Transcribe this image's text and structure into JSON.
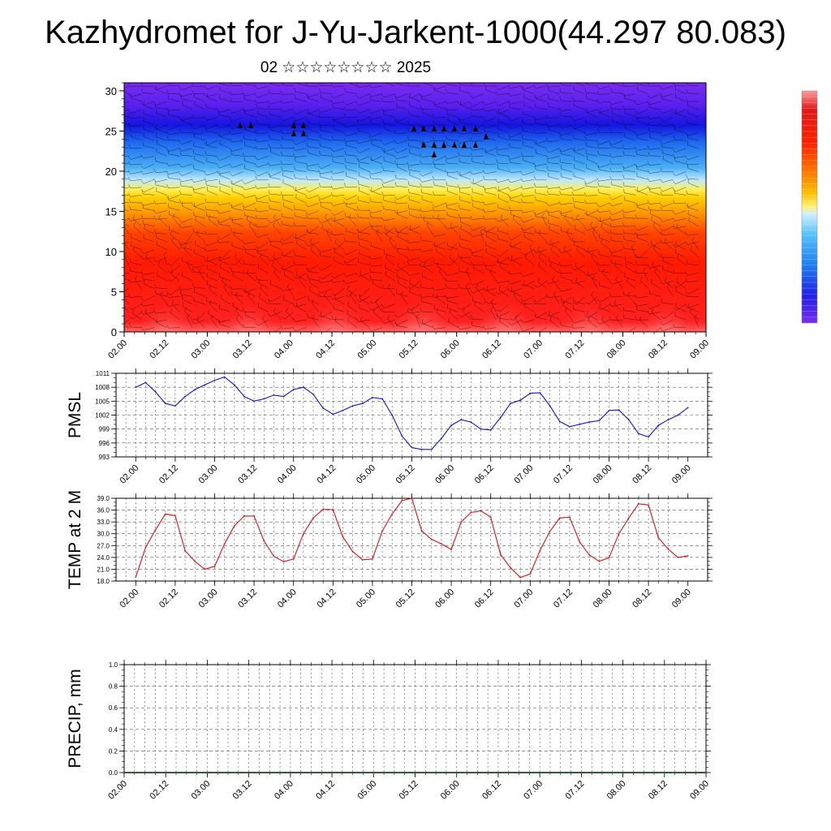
{
  "header": {
    "title": "Kazhydromet for J-Yu-Jarkent-1000(44.297 80.083)",
    "subtitle": "02 ☆☆☆☆☆☆☆☆ 2025"
  },
  "x_tick_labels": [
    "02.00",
    "02.12",
    "03.00",
    "03.12",
    "04.00",
    "04.12",
    "05.00",
    "05.12",
    "06.00",
    "06.12",
    "07.00",
    "07.12",
    "08.00",
    "08.12",
    "09.00"
  ],
  "colors": {
    "pmsl_line": "#1010e0",
    "temp_line": "#e01010",
    "frame": "#000000",
    "grid": "#555555"
  },
  "chart_data": [
    {
      "type": "heatmap",
      "title": "",
      "ylim": [
        0,
        31
      ],
      "y_ticks": [
        "0",
        "5",
        "10",
        "15",
        "20",
        "25",
        "30"
      ],
      "x_range": [
        0,
        7
      ],
      "colorbar": "purple-blue-cyan-yellow-orange-red-pink",
      "overlay": "wind barbs"
    },
    {
      "type": "line",
      "ylabel": "PMSL",
      "ylim": [
        993,
        1011
      ],
      "y_ticks": [
        "993",
        "996",
        "999",
        "1002",
        "1005",
        "1008",
        "1011"
      ],
      "x": [
        0,
        0.125,
        0.25,
        0.375,
        0.5,
        0.625,
        0.75,
        0.875,
        1,
        1.125,
        1.25,
        1.375,
        1.5,
        1.625,
        1.75,
        1.875,
        2,
        2.125,
        2.25,
        2.375,
        2.5,
        2.625,
        2.75,
        2.875,
        3,
        3.125,
        3.25,
        3.375,
        3.5,
        3.625,
        3.75,
        3.875,
        4,
        4.125,
        4.25,
        4.375,
        4.5,
        4.625,
        4.75,
        4.875,
        5,
        5.125,
        5.25,
        5.375,
        5.5,
        5.625,
        5.75,
        5.875,
        6,
        6.125,
        6.25,
        6.375,
        6.5,
        6.625,
        6.75,
        6.875,
        7
      ],
      "values": [
        1008,
        1009,
        1007,
        1004.5,
        1004,
        1006,
        1007.5,
        1008.5,
        1009.5,
        1010.2,
        1008.5,
        1006,
        1005,
        1005.5,
        1006.3,
        1006,
        1007.5,
        1008,
        1006.5,
        1003.5,
        1002.2,
        1003,
        1004,
        1004.5,
        1005.8,
        1005.5,
        1002,
        997.5,
        995,
        994.6,
        994.6,
        997,
        999.8,
        1001,
        1000.5,
        999,
        998.8,
        1001.5,
        1004.5,
        1005.2,
        1006.7,
        1006.8,
        1004,
        1000.6,
        999.5,
        1000,
        1000.5,
        1000.8,
        1003,
        1003.1,
        1001,
        998,
        997.3,
        999.8,
        1001,
        1002,
        1003.6
      ]
    },
    {
      "type": "line",
      "ylabel": "TEMP at 2 M",
      "ylim": [
        18,
        39
      ],
      "y_ticks": [
        "18.0",
        "21.0",
        "24.0",
        "27.0",
        "30.0",
        "33.0",
        "36.0",
        "39.0"
      ],
      "x": [
        0,
        0.125,
        0.25,
        0.375,
        0.5,
        0.625,
        0.75,
        0.875,
        1,
        1.125,
        1.25,
        1.375,
        1.5,
        1.625,
        1.75,
        1.875,
        2,
        2.125,
        2.25,
        2.375,
        2.5,
        2.625,
        2.75,
        2.875,
        3,
        3.125,
        3.25,
        3.375,
        3.5,
        3.625,
        3.75,
        3.875,
        4,
        4.125,
        4.25,
        4.375,
        4.5,
        4.625,
        4.75,
        4.875,
        5,
        5.125,
        5.25,
        5.375,
        5.5,
        5.625,
        5.75,
        5.875,
        6,
        6.125,
        6.25,
        6.375,
        6.5,
        6.625,
        6.75,
        6.875,
        7
      ],
      "values": [
        19,
        26.5,
        31,
        35,
        34.6,
        25.7,
        23,
        21,
        21.7,
        27.4,
        32,
        34.5,
        34.5,
        28.2,
        24.3,
        22.9,
        23.6,
        30,
        34,
        36.2,
        36.1,
        29.2,
        25.5,
        23.4,
        23.6,
        30.7,
        35,
        38.4,
        39,
        30.7,
        28.6,
        27.4,
        26,
        33,
        35.4,
        35.8,
        34.2,
        24.7,
        21.4,
        18.9,
        19.8,
        25.8,
        30.6,
        34,
        34.2,
        28,
        24.6,
        23,
        23.9,
        30,
        34,
        37.6,
        37.3,
        29,
        26.1,
        24,
        24.4
      ]
    },
    {
      "type": "bar",
      "ylabel": "PRECIP, mm",
      "ylim": [
        0,
        1
      ],
      "y_ticks": [
        "0.0",
        "0.2",
        "0.4",
        "0.6",
        "0.8",
        "1.0"
      ],
      "x_range": [
        0,
        7
      ],
      "values": []
    }
  ]
}
